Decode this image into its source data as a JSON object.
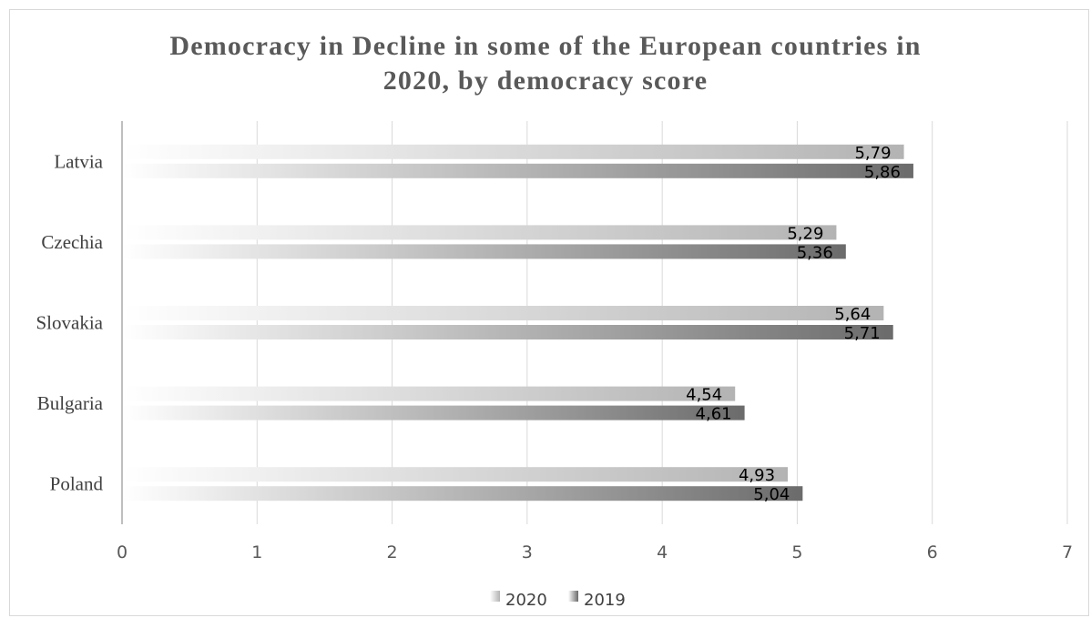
{
  "chart_data": {
    "type": "bar",
    "orientation": "horizontal",
    "title": "Democracy in Decline in some of the European countries in 2020, by democracy score",
    "title_lines": [
      "Democracy in Decline in some of the European countries in",
      "2020, by democracy score"
    ],
    "categories": [
      "Latvia",
      "Czechia",
      "Slovakia",
      "Bulgaria",
      "Poland"
    ],
    "series": [
      {
        "name": "2020",
        "values": [
          5.79,
          5.29,
          5.64,
          4.54,
          4.93
        ],
        "labels": [
          "5,79",
          "5,29",
          "5,64",
          "4,54",
          "4,93"
        ],
        "color": "#b3b3b3"
      },
      {
        "name": "2019",
        "values": [
          5.86,
          5.36,
          5.71,
          4.61,
          5.04
        ],
        "labels": [
          "5,86",
          "5,36",
          "5,71",
          "4,61",
          "5,04"
        ],
        "color": "#6b6b6b"
      }
    ],
    "xlim": [
      0,
      7
    ],
    "xticks": [
      "0",
      "1",
      "2",
      "3",
      "4",
      "5",
      "6",
      "7"
    ],
    "xlabel": "",
    "ylabel": "",
    "grid": "vertical",
    "legend": "bottom-center",
    "fill": "horizontal gradient from white to series color"
  }
}
